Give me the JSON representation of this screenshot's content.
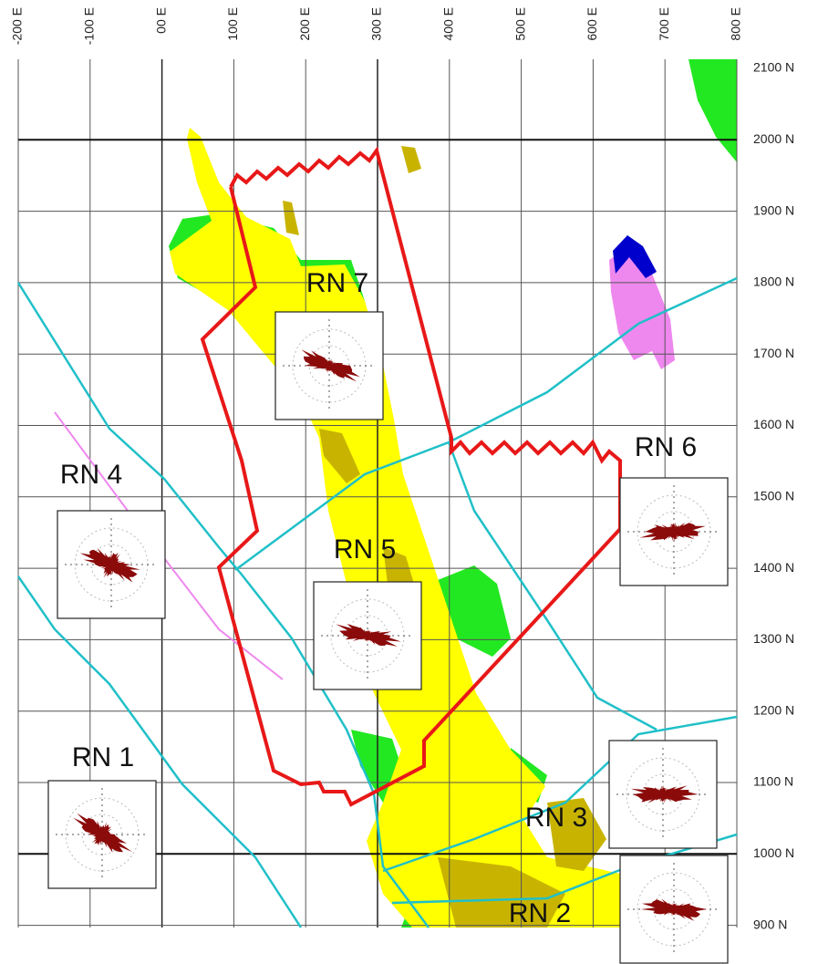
{
  "map": {
    "eastings": [
      "-200 E",
      "-100 E",
      "00 E",
      "100 E",
      "200 E",
      "300 E",
      "400 E",
      "500 E",
      "600 E",
      "700 E",
      "800 E"
    ],
    "northings": [
      "2100 N",
      "2000 N",
      "1900 N",
      "1800 N",
      "1700 N",
      "1600 N",
      "1500 N",
      "1400 N",
      "1300 N",
      "1200 N",
      "1100 N",
      "1000 N",
      "900 N"
    ],
    "roses": [
      {
        "label": "RN 1"
      },
      {
        "label": "RN 2"
      },
      {
        "label": "RN 3"
      },
      {
        "label": "RN 4"
      },
      {
        "label": "RN 5"
      },
      {
        "label": "RN 6"
      },
      {
        "label": "RN 7"
      }
    ]
  }
}
